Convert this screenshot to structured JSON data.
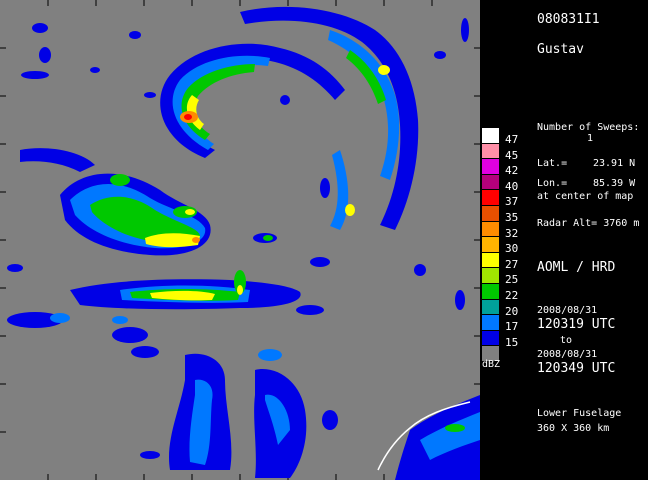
{
  "storm": {
    "id": "080831I1",
    "name": "Gustav"
  },
  "sweeps": {
    "label": "Number of Sweeps:",
    "value": "1"
  },
  "location": {
    "lat_label": "Lat.=",
    "lat_value": "23.91 N",
    "lon_label": "Lon.=",
    "lon_value": "85.39 W",
    "center_note": "at center of map"
  },
  "radar_alt": "Radar Alt= 3760 m",
  "agency": "AOML / HRD",
  "time": {
    "start_date": "2008/08/31",
    "start_time": "120319 UTC",
    "to": "to",
    "end_date": "2008/08/31",
    "end_time": "120349 UTC"
  },
  "radar_info": {
    "name": "Lower Fuselage",
    "size": "360 X 360 km"
  },
  "colorbar": {
    "unit": "dBZ",
    "levels": [
      {
        "label": "47",
        "color": "#ffffff"
      },
      {
        "label": "45",
        "color": "#ff8fa8"
      },
      {
        "label": "42",
        "color": "#e000e0"
      },
      {
        "label": "40",
        "color": "#b4007c"
      },
      {
        "label": "37",
        "color": "#ff0000"
      },
      {
        "label": "35",
        "color": "#e85000"
      },
      {
        "label": "32",
        "color": "#ff8c00"
      },
      {
        "label": "30",
        "color": "#ffb400"
      },
      {
        "label": "27",
        "color": "#ffff00"
      },
      {
        "label": "25",
        "color": "#a0e600"
      },
      {
        "label": "22",
        "color": "#00c800"
      },
      {
        "label": "20",
        "color": "#00a09a"
      },
      {
        "label": "17",
        "color": "#0078ff"
      },
      {
        "label": "15",
        "color": "#0000e6"
      },
      {
        "label": "",
        "color": "#808080"
      }
    ]
  }
}
